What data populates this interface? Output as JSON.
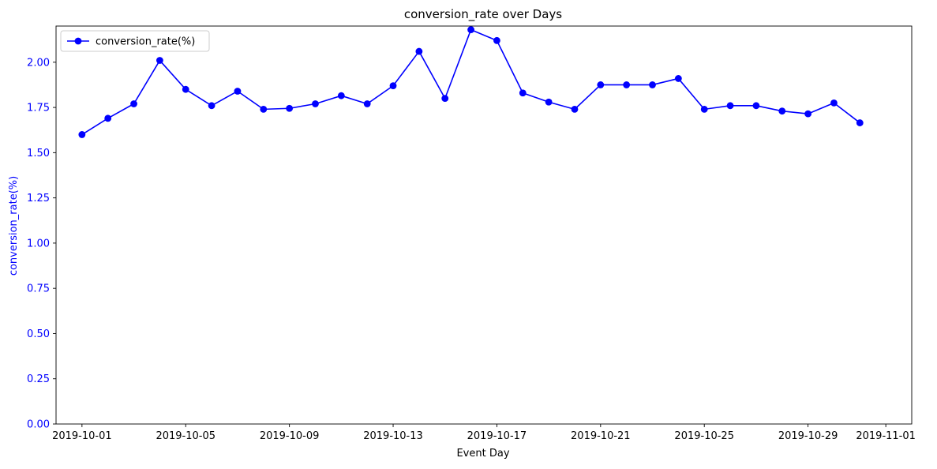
{
  "chart_data": {
    "type": "line",
    "title": "conversion_rate over Days",
    "xlabel": "Event Day",
    "ylabel": "conversion_rate(%)",
    "x": [
      "2019-10-01",
      "2019-10-02",
      "2019-10-03",
      "2019-10-04",
      "2019-10-05",
      "2019-10-06",
      "2019-10-07",
      "2019-10-08",
      "2019-10-09",
      "2019-10-10",
      "2019-10-11",
      "2019-10-12",
      "2019-10-13",
      "2019-10-14",
      "2019-10-15",
      "2019-10-16",
      "2019-10-17",
      "2019-10-18",
      "2019-10-19",
      "2019-10-20",
      "2019-10-21",
      "2019-10-22",
      "2019-10-23",
      "2019-10-24",
      "2019-10-25",
      "2019-10-26",
      "2019-10-27",
      "2019-10-28",
      "2019-10-29",
      "2019-10-30",
      "2019-10-31"
    ],
    "series": [
      {
        "name": "conversion_rate(%)",
        "color": "#0000ff",
        "values": [
          1.6,
          1.69,
          1.77,
          2.01,
          1.85,
          1.76,
          1.84,
          1.74,
          1.745,
          1.77,
          1.815,
          1.77,
          1.87,
          2.06,
          1.8,
          2.18,
          2.12,
          1.83,
          1.78,
          1.74,
          1.875,
          1.875,
          1.875,
          1.91,
          1.74,
          1.76,
          1.76,
          1.73,
          1.715,
          1.775,
          1.665
        ]
      }
    ],
    "xlim": [
      "2019-09-30",
      "2019-11-02"
    ],
    "ylim": [
      0,
      2.2
    ],
    "xticks": [
      "2019-10-01",
      "2019-10-05",
      "2019-10-09",
      "2019-10-13",
      "2019-10-17",
      "2019-10-21",
      "2019-10-25",
      "2019-10-29",
      "2019-11-01"
    ],
    "yticks": [
      "0.00",
      "0.25",
      "0.50",
      "0.75",
      "1.00",
      "1.25",
      "1.50",
      "1.75",
      "2.00"
    ],
    "grid": false,
    "legend_position": "top-left",
    "ylabel_color": "#0000ff",
    "ytick_color": "#0000ff"
  }
}
